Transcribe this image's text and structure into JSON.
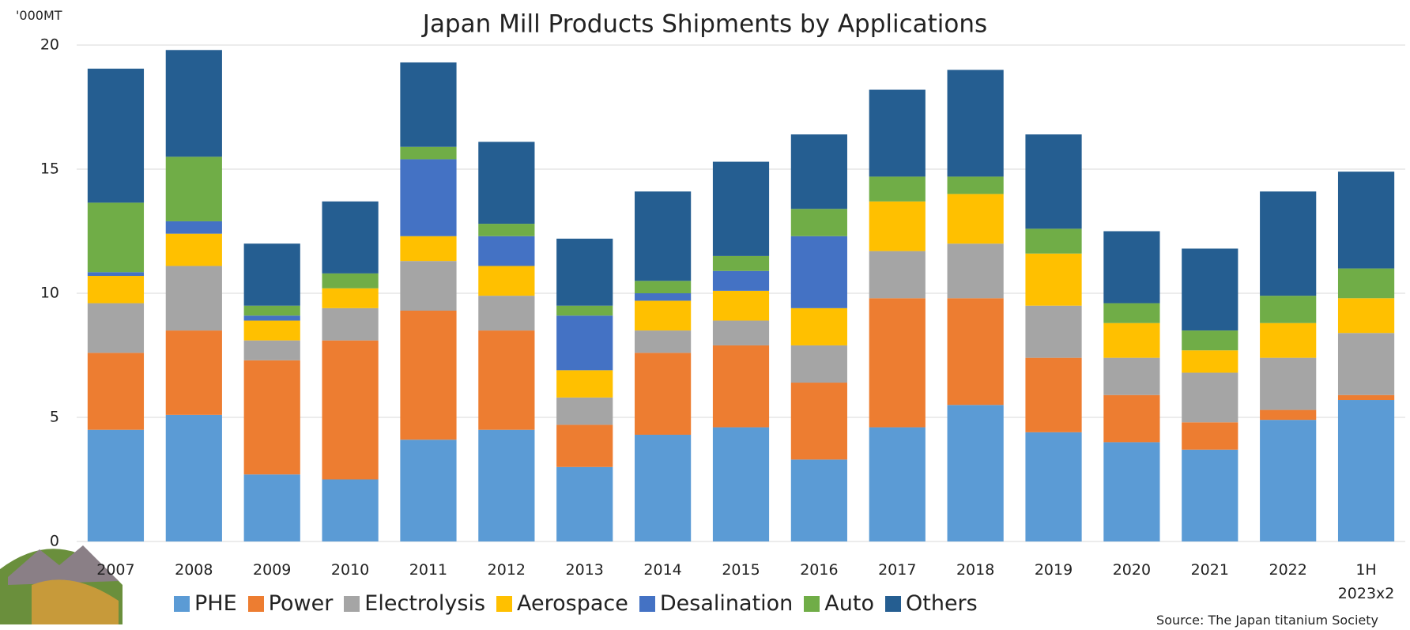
{
  "chart_data": {
    "type": "stacked_bar",
    "title": "Japan Mill Products Shipments by Applications",
    "y_axis_label": "'000MT",
    "source": "Source: The Japan titanium Society",
    "categories": [
      "2007",
      "2008",
      "2009",
      "2010",
      "2011",
      "2012",
      "2013",
      "2014",
      "2015",
      "2016",
      "2017",
      "2018",
      "2019",
      "2020",
      "2021",
      "2022",
      "1H\n2023x2"
    ],
    "series": [
      {
        "name": "PHE",
        "color": "#5b9bd5",
        "values": [
          4.5,
          5.1,
          2.7,
          2.5,
          4.1,
          4.5,
          3.0,
          4.3,
          4.6,
          3.3,
          4.6,
          5.5,
          4.4,
          4.0,
          3.7,
          4.9,
          5.7
        ]
      },
      {
        "name": "Power",
        "color": "#ed7d31",
        "values": [
          3.1,
          3.4,
          4.6,
          5.6,
          5.2,
          4.0,
          1.7,
          3.3,
          3.3,
          3.1,
          5.2,
          4.3,
          3.0,
          1.9,
          1.1,
          0.4,
          0.2
        ]
      },
      {
        "name": "Electrolysis",
        "color": "#a5a5a5",
        "values": [
          2.0,
          2.6,
          0.8,
          1.3,
          2.0,
          1.4,
          1.1,
          0.9,
          1.0,
          1.5,
          1.9,
          2.2,
          2.1,
          1.5,
          2.0,
          2.1,
          2.5
        ]
      },
      {
        "name": "Aerospace",
        "color": "#ffc000",
        "values": [
          1.1,
          1.3,
          0.8,
          0.8,
          1.0,
          1.2,
          1.1,
          1.2,
          1.2,
          1.5,
          2.0,
          2.0,
          2.1,
          1.4,
          0.9,
          1.4,
          1.4
        ]
      },
      {
        "name": "Desalination",
        "color": "#4472c4",
        "values": [
          0.15,
          0.5,
          0.2,
          0,
          3.1,
          1.2,
          2.2,
          0.3,
          0.8,
          2.9,
          0,
          0,
          0,
          0,
          0,
          0,
          0
        ]
      },
      {
        "name": "Auto",
        "color": "#70ad47",
        "values": [
          2.8,
          2.6,
          0.4,
          0.6,
          0.5,
          0.5,
          0.4,
          0.5,
          0.6,
          1.1,
          1.0,
          0.7,
          1.0,
          0.8,
          0.8,
          1.1,
          1.2
        ]
      },
      {
        "name": "Others",
        "color": "#255e91",
        "values": [
          5.4,
          4.3,
          2.5,
          2.9,
          3.4,
          3.3,
          2.7,
          3.6,
          3.8,
          3.0,
          3.5,
          4.3,
          3.8,
          2.9,
          3.3,
          4.2,
          3.9
        ]
      }
    ],
    "ylim": [
      0,
      20
    ],
    "yticks": [
      0,
      5,
      10,
      15,
      20
    ],
    "grid": true
  }
}
